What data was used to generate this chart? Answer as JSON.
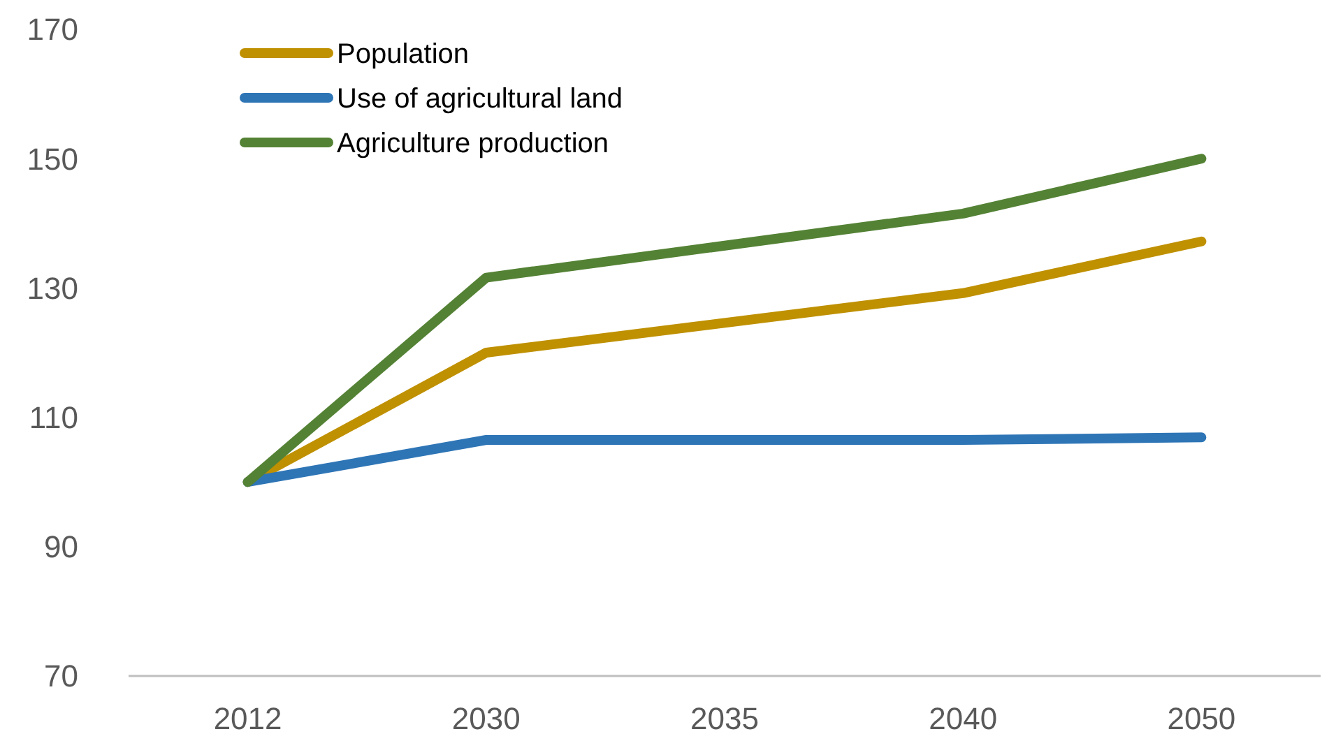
{
  "chart_data": {
    "type": "line",
    "categories": [
      "2012",
      "2030",
      "2035",
      "2040",
      "2050"
    ],
    "series": [
      {
        "name": "Population",
        "color": "#bf9000",
        "values": [
          100,
          120,
          null,
          129.2,
          137.2
        ]
      },
      {
        "name": "Use of agricultural land",
        "color": "#2e75b6",
        "values": [
          100,
          106.5,
          null,
          106.5,
          106.9
        ]
      },
      {
        "name": "Agriculture production",
        "color": "#548235",
        "values": [
          100,
          131.6,
          null,
          141.5,
          150
        ]
      }
    ],
    "ylim": [
      70,
      170
    ],
    "yticks": [
      70,
      90,
      110,
      130,
      150,
      170
    ],
    "grid": false,
    "legend": "top left",
    "marker": "none",
    "line_style": "solid"
  }
}
